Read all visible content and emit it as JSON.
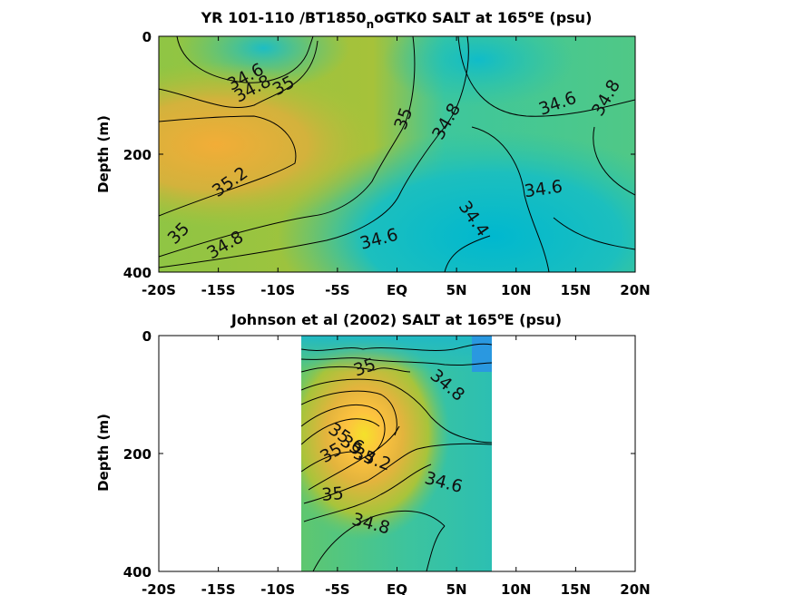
{
  "chart_data": [
    {
      "type": "contour",
      "title_main": "YR 101-110 /BT1850",
      "title_sub": "n",
      "title_rest": "oGTK0 SALT at 165",
      "title_deg": "o",
      "title_end": "E (psu)",
      "ylabel": "Depth (m)",
      "x_ticks": [
        "-20S",
        "-15S",
        "-10S",
        "-5S",
        "EQ",
        "5N",
        "10N",
        "15N",
        "20N"
      ],
      "x_values": [
        -20,
        -15,
        -10,
        -5,
        0,
        5,
        10,
        15,
        20
      ],
      "y_ticks": [
        "0",
        "200",
        "400"
      ],
      "y_values": [
        0,
        200,
        400
      ],
      "xlim": [
        -20,
        20
      ],
      "ylim": [
        0,
        400
      ],
      "y_reversed": true,
      "data_range": [
        -20,
        20
      ],
      "contour_labels": [
        {
          "text": "34.6",
          "x": -12.7,
          "y": 70
        },
        {
          "text": "34.8",
          "x": -12.1,
          "y": 90
        },
        {
          "text": "35",
          "x": -9.5,
          "y": 85
        },
        {
          "text": "35",
          "x": 0.6,
          "y": 140
        },
        {
          "text": "34.8",
          "x": 4.2,
          "y": 145
        },
        {
          "text": "34.6",
          "x": 13.5,
          "y": 115
        },
        {
          "text": "34.8",
          "x": 17.6,
          "y": 105
        },
        {
          "text": "35.2",
          "x": -14.0,
          "y": 248
        },
        {
          "text": "34.6",
          "x": 12.3,
          "y": 260
        },
        {
          "text": "34.4",
          "x": 6.4,
          "y": 310
        },
        {
          "text": "35",
          "x": -18.3,
          "y": 335
        },
        {
          "text": "34.8",
          "x": -14.4,
          "y": 355
        },
        {
          "text": "34.6",
          "x": -1.5,
          "y": 345
        }
      ]
    },
    {
      "type": "contour",
      "title_main": "Johnson et al (2002) SALT at 165",
      "title_deg": "o",
      "title_end": "E (psu)",
      "ylabel": "Depth (m)",
      "x_ticks": [
        "-20S",
        "-15S",
        "-10S",
        "-5S",
        "EQ",
        "5N",
        "10N",
        "15N",
        "20N"
      ],
      "x_values": [
        -20,
        -15,
        -10,
        -5,
        0,
        5,
        10,
        15,
        20
      ],
      "y_ticks": [
        "0",
        "200",
        "400"
      ],
      "y_values": [
        0,
        200,
        400
      ],
      "xlim": [
        -20,
        20
      ],
      "ylim": [
        0,
        400
      ],
      "y_reversed": true,
      "data_range": [
        -8,
        8
      ],
      "contour_labels": [
        {
          "text": "35",
          "x": -2.7,
          "y": 55
        },
        {
          "text": "34.8",
          "x": 4.2,
          "y": 85
        },
        {
          "text": "35.6",
          "x": -4.3,
          "y": 175
        },
        {
          "text": "35.4",
          "x": -3.3,
          "y": 195
        },
        {
          "text": "35",
          "x": -5.5,
          "y": 200
        },
        {
          "text": "35.2",
          "x": -2.1,
          "y": 210
        },
        {
          "text": "34.6",
          "x": 3.9,
          "y": 250
        },
        {
          "text": "35",
          "x": -5.4,
          "y": 270
        },
        {
          "text": "34.8",
          "x": -2.2,
          "y": 320
        }
      ]
    }
  ]
}
